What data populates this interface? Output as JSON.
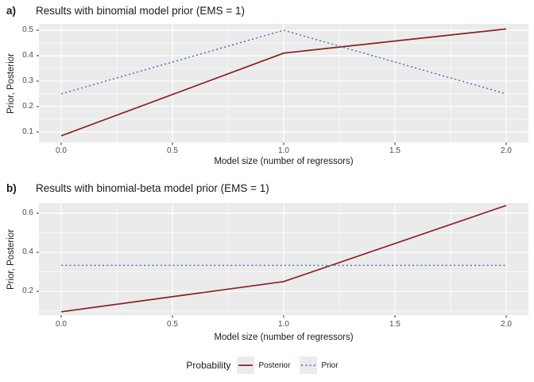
{
  "figure": {
    "background": "#FFFFFF",
    "panel_background": "#EBEBEB",
    "grid_color": "#FFFFFF",
    "tick_color": "#333333",
    "tick_label_color": "#4D4D4D",
    "text_color": "#1A1A1A"
  },
  "legend": {
    "title": "Probability",
    "key_background": "#EBEBEB",
    "position": "bottom",
    "items": [
      {
        "label": "Posterior",
        "color": "#8B2121",
        "style": "solid"
      },
      {
        "label": "Prior",
        "color": "#4878B8",
        "style": "dotted"
      }
    ]
  },
  "chart_data": [
    {
      "type": "line",
      "panel_tag": "a)",
      "title": "Results with binomial model prior (EMS = 1)",
      "xlabel": "Model size (number of regressors)",
      "ylabel": "Prior, Posterior",
      "x": [
        0,
        1,
        2
      ],
      "series": [
        {
          "name": "Posterior",
          "values": [
            0.085,
            0.41,
            0.505
          ],
          "color": "#8B2121",
          "style": "solid"
        },
        {
          "name": "Prior",
          "values": [
            0.25,
            0.5,
            0.25
          ],
          "color": "#4878B8",
          "style": "dotted"
        }
      ],
      "xlim": [
        -0.1,
        2.1
      ],
      "ylim": [
        0.059,
        0.525
      ],
      "xticks": [
        0.0,
        0.5,
        1.0,
        1.5,
        2.0
      ],
      "yticks": [
        0.1,
        0.2,
        0.3,
        0.4,
        0.5
      ],
      "xtick_labels": [
        "0.0",
        "0.5",
        "1.0",
        "1.5",
        "2.0"
      ],
      "ytick_labels": [
        "0.1",
        "0.2",
        "0.3",
        "0.4",
        "0.5"
      ],
      "x_minor": [
        0.25,
        0.75,
        1.25,
        1.75
      ],
      "y_minor": [
        0.15,
        0.25,
        0.35,
        0.45
      ],
      "grid": true
    },
    {
      "type": "line",
      "panel_tag": "b)",
      "title": "Results with binomial-beta model prior (EMS = 1)",
      "xlabel": "Model size (number of regressors)",
      "ylabel": "Prior, Posterior",
      "x": [
        0,
        1,
        2
      ],
      "series": [
        {
          "name": "Posterior",
          "values": [
            0.095,
            0.25,
            0.64
          ],
          "color": "#8B2121",
          "style": "solid"
        },
        {
          "name": "Prior",
          "values": [
            0.333,
            0.333,
            0.333
          ],
          "color": "#4878B8",
          "style": "dotted"
        }
      ],
      "xlim": [
        -0.1,
        2.1
      ],
      "ylim": [
        0.078,
        0.653
      ],
      "xticks": [
        0.0,
        0.5,
        1.0,
        1.5,
        2.0
      ],
      "yticks": [
        0.2,
        0.4,
        0.6
      ],
      "xtick_labels": [
        "0.0",
        "0.5",
        "1.0",
        "1.5",
        "2.0"
      ],
      "ytick_labels": [
        "0.2",
        "0.4",
        "0.6"
      ],
      "x_minor": [
        0.25,
        0.75,
        1.25,
        1.75
      ],
      "y_minor": [
        0.1,
        0.3,
        0.5
      ],
      "grid": true
    }
  ]
}
